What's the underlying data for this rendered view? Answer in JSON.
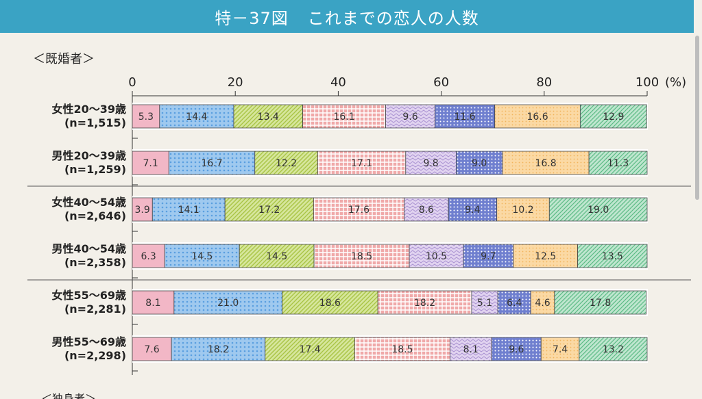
{
  "header": {
    "figure_number": "特－37図",
    "title": "これまでの恋人の人数"
  },
  "section": {
    "label": "＜既婚者＞",
    "next_label": "＜独身者＞"
  },
  "chart_data": {
    "type": "bar",
    "orientation": "horizontal",
    "stacked": true,
    "title": "特－37図　これまでの恋人の人数",
    "subtitle": "＜既婚者＞",
    "xlabel": "(%)",
    "xlim": [
      0,
      100
    ],
    "xticks": [
      "0",
      "20",
      "40",
      "60",
      "80",
      "100"
    ],
    "unit": "(%)",
    "categories": [
      {
        "label": "女性20～39歳",
        "n": "(n=1,515)"
      },
      {
        "label": "男性20～39歳",
        "n": "(n=1,259)"
      },
      {
        "label": "女性40～54歳",
        "n": "(n=2,646)"
      },
      {
        "label": "男性40～54歳",
        "n": "(n=2,358)"
      },
      {
        "label": "女性55～69歳",
        "n": "(n=2,281)"
      },
      {
        "label": "男性55～69歳",
        "n": "(n=2,298)"
      }
    ],
    "rows": [
      [
        5.3,
        14.4,
        13.4,
        16.1,
        9.6,
        11.6,
        16.6,
        12.9
      ],
      [
        7.1,
        16.7,
        12.2,
        17.1,
        9.8,
        9.0,
        16.8,
        11.3
      ],
      [
        3.9,
        14.1,
        17.2,
        17.6,
        8.6,
        9.4,
        10.2,
        19.0
      ],
      [
        6.3,
        14.5,
        14.5,
        18.5,
        10.5,
        9.7,
        12.5,
        13.5
      ],
      [
        8.1,
        21.0,
        18.6,
        18.2,
        5.1,
        6.4,
        4.6,
        17.8
      ],
      [
        7.6,
        18.2,
        17.4,
        18.5,
        8.1,
        9.6,
        7.4,
        13.2
      ]
    ],
    "segment_colors": [
      "#f2b7c6",
      "#9fc9ef",
      "#d6e69c",
      "#f0a9a9",
      "#e1d3f0",
      "#6f7fcf",
      "#fbd9a4",
      "#bfe6cf"
    ],
    "pattern_colors": [
      "#ffffff",
      "#5a9fe0",
      "#a9c445",
      "#ffffff",
      "#a88fd0",
      "#ffffff",
      "#f2b45c",
      "#5dbb86"
    ],
    "grid": false
  }
}
